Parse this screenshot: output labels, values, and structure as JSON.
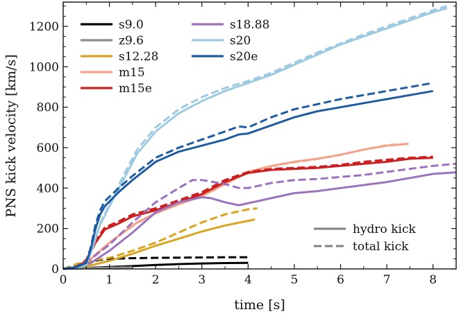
{
  "chart_data": {
    "type": "line",
    "title": "",
    "xlabel": "time [s]",
    "ylabel": "PNS kick velocity [km/s]",
    "xlim": [
      0,
      8.5
    ],
    "ylim": [
      0,
      1320
    ],
    "xticks": [
      "0",
      "1",
      "2",
      "3",
      "4",
      "5",
      "6",
      "7",
      "8"
    ],
    "yticks": [
      "0",
      "200",
      "400",
      "600",
      "800",
      "1000",
      "1200"
    ],
    "grid": false,
    "legend_position": "top-left",
    "style_legend_position": "bottom-right",
    "style_legend": [
      {
        "label": "hydro kick",
        "dash": "solid"
      },
      {
        "label": "total kick",
        "dash": "dashed"
      }
    ],
    "series": [
      {
        "name": "s9.0",
        "color": "#000000",
        "hydro": [
          [
            0,
            0
          ],
          [
            0.3,
            3
          ],
          [
            0.6,
            6
          ],
          [
            1.0,
            10
          ],
          [
            1.5,
            14
          ],
          [
            2.0,
            20
          ],
          [
            2.5,
            24
          ],
          [
            3.0,
            27
          ],
          [
            3.5,
            29
          ],
          [
            4.0,
            30
          ]
        ],
        "total": [
          [
            0,
            0
          ],
          [
            0.3,
            15
          ],
          [
            0.5,
            32
          ],
          [
            0.8,
            45
          ],
          [
            1.0,
            50
          ],
          [
            1.5,
            53
          ],
          [
            2.0,
            55
          ],
          [
            2.5,
            56
          ],
          [
            3.0,
            57
          ],
          [
            3.5,
            58
          ],
          [
            4.0,
            58
          ]
        ]
      },
      {
        "name": "z9.6",
        "color": "#8c8c8c",
        "hydro": [
          [
            0,
            0
          ],
          [
            0.3,
            2
          ],
          [
            0.6,
            4
          ],
          [
            1.0,
            6
          ],
          [
            1.3,
            7
          ],
          [
            1.5,
            8
          ]
        ],
        "total": [
          [
            0,
            0
          ],
          [
            0.3,
            3
          ],
          [
            0.6,
            5
          ],
          [
            1.0,
            7
          ],
          [
            1.3,
            8
          ],
          [
            1.5,
            9
          ]
        ]
      },
      {
        "name": "s12.28",
        "color": "#d9a520",
        "hydro": [
          [
            0,
            0
          ],
          [
            0.3,
            10
          ],
          [
            0.6,
            18
          ],
          [
            1.0,
            40
          ],
          [
            1.5,
            75
          ],
          [
            2.0,
            115
          ],
          [
            2.5,
            150
          ],
          [
            3.0,
            185
          ],
          [
            3.5,
            215
          ],
          [
            4.0,
            238
          ],
          [
            4.15,
            245
          ]
        ],
        "total": [
          [
            0,
            0
          ],
          [
            0.3,
            25
          ],
          [
            0.6,
            40
          ],
          [
            1.0,
            55
          ],
          [
            1.5,
            90
          ],
          [
            2.0,
            130
          ],
          [
            2.5,
            180
          ],
          [
            3.0,
            230
          ],
          [
            3.5,
            270
          ],
          [
            4.0,
            295
          ],
          [
            4.2,
            300
          ]
        ]
      },
      {
        "name": "m15",
        "color": "#f4a28a",
        "hydro": [
          [
            0,
            0
          ],
          [
            0.3,
            10
          ],
          [
            0.5,
            30
          ],
          [
            0.7,
            70
          ],
          [
            1.0,
            130
          ],
          [
            1.3,
            180
          ],
          [
            1.6,
            230
          ],
          [
            2.0,
            275
          ],
          [
            2.5,
            320
          ],
          [
            3.0,
            360
          ],
          [
            3.5,
            420
          ],
          [
            4.0,
            480
          ],
          [
            4.5,
            510
          ],
          [
            5.0,
            530
          ],
          [
            5.5,
            545
          ],
          [
            6.0,
            565
          ],
          [
            6.5,
            590
          ],
          [
            7.0,
            610
          ],
          [
            7.4,
            617
          ]
        ],
        "total": [
          [
            0,
            0
          ],
          [
            0.3,
            12
          ],
          [
            0.5,
            32
          ],
          [
            0.7,
            72
          ],
          [
            1.0,
            130
          ],
          [
            1.3,
            180
          ],
          [
            1.6,
            228
          ],
          [
            2.0,
            275
          ],
          [
            2.5,
            322
          ],
          [
            3.0,
            362
          ],
          [
            3.5,
            420
          ],
          [
            4.0,
            478
          ],
          [
            4.5,
            508
          ],
          [
            5.0,
            528
          ],
          [
            5.5,
            544
          ],
          [
            6.0,
            564
          ],
          [
            6.5,
            590
          ],
          [
            7.0,
            612
          ],
          [
            7.5,
            620
          ]
        ]
      },
      {
        "name": "m15e",
        "color": "#cc1f1f",
        "hydro": [
          [
            0,
            0
          ],
          [
            0.3,
            10
          ],
          [
            0.5,
            40
          ],
          [
            0.7,
            130
          ],
          [
            0.9,
            195
          ],
          [
            1.2,
            225
          ],
          [
            1.5,
            260
          ],
          [
            2.0,
            290
          ],
          [
            2.5,
            330
          ],
          [
            3.0,
            370
          ],
          [
            3.5,
            430
          ],
          [
            4.0,
            475
          ],
          [
            4.5,
            490
          ],
          [
            5.0,
            495
          ],
          [
            5.5,
            500
          ],
          [
            6.0,
            510
          ],
          [
            6.5,
            520
          ],
          [
            7.0,
            530
          ],
          [
            7.5,
            545
          ],
          [
            8.0,
            550
          ]
        ],
        "total": [
          [
            0,
            0
          ],
          [
            0.3,
            12
          ],
          [
            0.5,
            45
          ],
          [
            0.7,
            140
          ],
          [
            0.9,
            205
          ],
          [
            1.2,
            235
          ],
          [
            1.5,
            270
          ],
          [
            2.0,
            300
          ],
          [
            2.5,
            340
          ],
          [
            3.0,
            380
          ],
          [
            3.5,
            440
          ],
          [
            4.0,
            480
          ],
          [
            4.5,
            495
          ],
          [
            5.0,
            500
          ],
          [
            5.5,
            505
          ],
          [
            6.0,
            515
          ],
          [
            6.5,
            530
          ],
          [
            7.0,
            540
          ],
          [
            7.5,
            550
          ],
          [
            8.0,
            555
          ]
        ]
      },
      {
        "name": "s18.88",
        "color": "#9b72bd",
        "hydro": [
          [
            0,
            0
          ],
          [
            0.3,
            8
          ],
          [
            0.6,
            30
          ],
          [
            1.0,
            90
          ],
          [
            1.5,
            180
          ],
          [
            2.0,
            280
          ],
          [
            2.5,
            330
          ],
          [
            3.0,
            355
          ],
          [
            3.2,
            350
          ],
          [
            3.5,
            330
          ],
          [
            3.8,
            315
          ],
          [
            4.0,
            325
          ],
          [
            4.5,
            350
          ],
          [
            5.0,
            375
          ],
          [
            5.5,
            385
          ],
          [
            6.0,
            400
          ],
          [
            6.5,
            415
          ],
          [
            7.0,
            430
          ],
          [
            7.5,
            450
          ],
          [
            8.0,
            470
          ],
          [
            8.5,
            478
          ]
        ],
        "total": [
          [
            0,
            0
          ],
          [
            0.3,
            12
          ],
          [
            0.6,
            50
          ],
          [
            1.0,
            120
          ],
          [
            1.5,
            230
          ],
          [
            2.0,
            330
          ],
          [
            2.5,
            400
          ],
          [
            2.8,
            440
          ],
          [
            3.0,
            440
          ],
          [
            3.5,
            420
          ],
          [
            3.8,
            400
          ],
          [
            4.0,
            400
          ],
          [
            4.5,
            425
          ],
          [
            5.0,
            440
          ],
          [
            5.5,
            445
          ],
          [
            6.0,
            455
          ],
          [
            6.5,
            465
          ],
          [
            7.0,
            480
          ],
          [
            7.5,
            495
          ],
          [
            8.0,
            510
          ],
          [
            8.5,
            520
          ]
        ]
      },
      {
        "name": "s20",
        "color": "#9ecae1",
        "hydro": [
          [
            0,
            0
          ],
          [
            0.3,
            5
          ],
          [
            0.5,
            20
          ],
          [
            0.6,
            80
          ],
          [
            0.8,
            220
          ],
          [
            1.0,
            310
          ],
          [
            1.3,
            440
          ],
          [
            1.6,
            570
          ],
          [
            2.0,
            680
          ],
          [
            2.5,
            770
          ],
          [
            3.0,
            830
          ],
          [
            3.5,
            880
          ],
          [
            4.0,
            920
          ],
          [
            4.5,
            960
          ],
          [
            5.0,
            1010
          ],
          [
            5.5,
            1060
          ],
          [
            6.0,
            1110
          ],
          [
            6.5,
            1150
          ],
          [
            7.0,
            1190
          ],
          [
            7.5,
            1230
          ],
          [
            8.0,
            1270
          ],
          [
            8.3,
            1290
          ]
        ],
        "total": [
          [
            0,
            0
          ],
          [
            0.3,
            6
          ],
          [
            0.5,
            22
          ],
          [
            0.6,
            85
          ],
          [
            0.8,
            225
          ],
          [
            1.0,
            320
          ],
          [
            1.3,
            460
          ],
          [
            1.6,
            590
          ],
          [
            2.0,
            700
          ],
          [
            2.5,
            790
          ],
          [
            3.0,
            850
          ],
          [
            3.5,
            895
          ],
          [
            4.0,
            930
          ],
          [
            4.5,
            970
          ],
          [
            5.0,
            1020
          ],
          [
            5.5,
            1070
          ],
          [
            6.0,
            1115
          ],
          [
            6.5,
            1160
          ],
          [
            7.0,
            1200
          ],
          [
            7.5,
            1240
          ],
          [
            8.0,
            1280
          ],
          [
            8.3,
            1300
          ]
        ]
      },
      {
        "name": "s20e",
        "color": "#1f5ba3",
        "hydro": [
          [
            0,
            0
          ],
          [
            0.3,
            10
          ],
          [
            0.5,
            30
          ],
          [
            0.6,
            100
          ],
          [
            0.7,
            200
          ],
          [
            0.8,
            270
          ],
          [
            0.9,
            310
          ],
          [
            1.2,
            380
          ],
          [
            1.5,
            440
          ],
          [
            2.0,
            530
          ],
          [
            2.5,
            580
          ],
          [
            3.0,
            610
          ],
          [
            3.5,
            640
          ],
          [
            3.8,
            665
          ],
          [
            4.0,
            670
          ],
          [
            4.5,
            710
          ],
          [
            5.0,
            750
          ],
          [
            5.5,
            780
          ],
          [
            6.0,
            800
          ],
          [
            6.5,
            820
          ],
          [
            7.0,
            840
          ],
          [
            7.5,
            860
          ],
          [
            8.0,
            880
          ]
        ],
        "total": [
          [
            0,
            0
          ],
          [
            0.3,
            12
          ],
          [
            0.5,
            35
          ],
          [
            0.6,
            110
          ],
          [
            0.7,
            220
          ],
          [
            0.8,
            290
          ],
          [
            0.9,
            335
          ],
          [
            1.2,
            400
          ],
          [
            1.5,
            460
          ],
          [
            2.0,
            550
          ],
          [
            2.5,
            600
          ],
          [
            3.0,
            640
          ],
          [
            3.5,
            680
          ],
          [
            3.8,
            705
          ],
          [
            4.0,
            700
          ],
          [
            4.5,
            750
          ],
          [
            5.0,
            790
          ],
          [
            5.5,
            815
          ],
          [
            6.0,
            840
          ],
          [
            6.5,
            860
          ],
          [
            7.0,
            880
          ],
          [
            7.5,
            900
          ],
          [
            8.0,
            920
          ]
        ]
      }
    ]
  }
}
